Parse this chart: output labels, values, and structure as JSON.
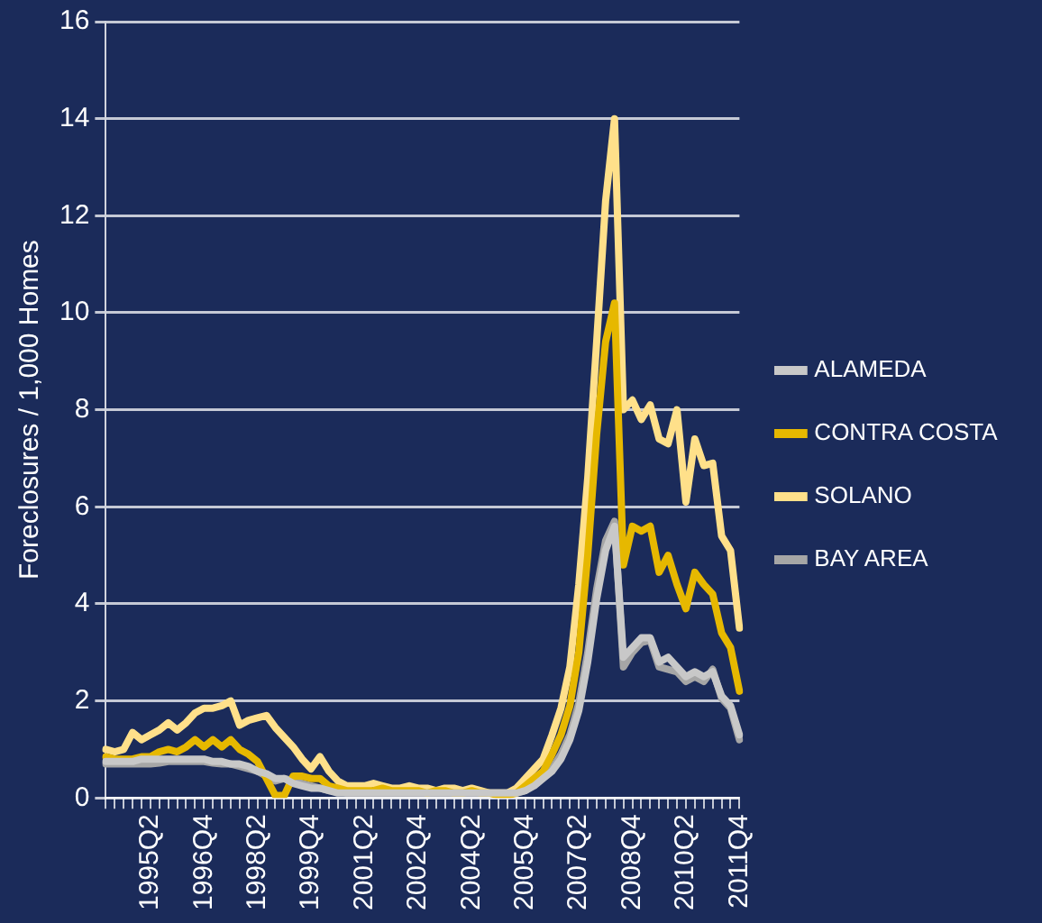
{
  "chart_data": {
    "type": "line",
    "ylabel": "Foreclosures / 1,000 Homes",
    "categories": [
      null,
      null,
      null,
      null,
      null,
      "1995Q2",
      null,
      null,
      null,
      null,
      null,
      "1996Q4",
      null,
      null,
      null,
      null,
      null,
      "1998Q2",
      null,
      null,
      null,
      null,
      null,
      "1999Q4",
      null,
      null,
      null,
      null,
      null,
      "2001Q2",
      null,
      null,
      null,
      null,
      null,
      "2002Q4",
      null,
      null,
      null,
      null,
      null,
      "2004Q2",
      null,
      null,
      null,
      null,
      null,
      "2005Q4",
      null,
      null,
      null,
      null,
      null,
      "2007Q2",
      null,
      null,
      null,
      null,
      null,
      "2008Q4",
      null,
      null,
      null,
      null,
      null,
      "2010Q2",
      null,
      null,
      null,
      null,
      null,
      "2011Q4"
    ],
    "series": [
      {
        "name": "ALAMEDA",
        "color": "#c8c8c8",
        "values": [
          0.75,
          0.75,
          0.75,
          0.75,
          0.8,
          0.8,
          0.8,
          0.8,
          0.8,
          0.8,
          0.8,
          0.8,
          0.75,
          0.75,
          0.7,
          0.7,
          0.65,
          0.55,
          0.5,
          0.4,
          0.4,
          0.3,
          0.25,
          0.2,
          0.2,
          0.15,
          0.1,
          0.1,
          0.1,
          0.1,
          0.1,
          0.1,
          0.1,
          0.1,
          0.1,
          0.1,
          0.1,
          0.1,
          0.1,
          0.1,
          0.1,
          0.1,
          0.1,
          0.1,
          0.1,
          0.1,
          0.1,
          0.15,
          0.25,
          0.4,
          0.55,
          0.8,
          1.2,
          1.8,
          2.8,
          4.1,
          5.1,
          5.6,
          2.9,
          3.1,
          3.3,
          3.3,
          2.8,
          2.9,
          2.7,
          2.5,
          2.6,
          2.5,
          2.6,
          2.1,
          1.9,
          1.3
        ]
      },
      {
        "name": "CONTRA COSTA",
        "color": "#e6b800",
        "values": [
          0.85,
          0.8,
          0.8,
          0.8,
          0.85,
          0.85,
          0.95,
          1.0,
          0.95,
          1.05,
          1.2,
          1.05,
          1.2,
          1.05,
          1.2,
          1.0,
          0.9,
          0.75,
          0.4,
          0.05,
          0.05,
          0.45,
          0.45,
          0.4,
          0.4,
          0.25,
          0.2,
          0.15,
          0.15,
          0.15,
          0.15,
          0.2,
          0.15,
          0.15,
          0.15,
          0.15,
          0.1,
          0.15,
          0.15,
          0.1,
          0.1,
          0.15,
          0.1,
          0.1,
          0.05,
          0.05,
          0.1,
          0.25,
          0.4,
          0.55,
          0.9,
          1.3,
          1.9,
          3.0,
          5.0,
          7.5,
          9.4,
          10.2,
          4.8,
          5.6,
          5.5,
          5.6,
          4.65,
          5.0,
          4.4,
          3.9,
          4.65,
          4.4,
          4.2,
          3.4,
          3.1,
          2.2
        ]
      },
      {
        "name": "SOLANO",
        "color": "#ffe08a",
        "values": [
          1.0,
          0.95,
          1.0,
          1.35,
          1.2,
          1.3,
          1.4,
          1.55,
          1.4,
          1.55,
          1.75,
          1.85,
          1.85,
          1.9,
          2.0,
          1.5,
          1.6,
          1.65,
          1.7,
          1.45,
          1.25,
          1.05,
          0.8,
          0.6,
          0.85,
          0.55,
          0.35,
          0.25,
          0.25,
          0.25,
          0.3,
          0.25,
          0.2,
          0.2,
          0.25,
          0.2,
          0.2,
          0.15,
          0.2,
          0.2,
          0.15,
          0.2,
          0.15,
          0.1,
          0.1,
          0.1,
          0.2,
          0.4,
          0.6,
          0.8,
          1.3,
          1.85,
          2.7,
          4.4,
          6.6,
          9.4,
          12.3,
          14.0,
          8.0,
          8.2,
          7.8,
          8.1,
          7.4,
          7.3,
          8.0,
          6.1,
          7.4,
          6.85,
          6.9,
          5.4,
          5.1,
          3.5
        ]
      },
      {
        "name": "BAY AREA",
        "color": "#a6a6a6",
        "values": [
          0.7,
          0.7,
          0.7,
          0.7,
          0.7,
          0.7,
          0.72,
          0.75,
          0.75,
          0.75,
          0.75,
          0.75,
          0.72,
          0.7,
          0.7,
          0.65,
          0.6,
          0.55,
          0.45,
          0.35,
          0.4,
          0.35,
          0.3,
          0.25,
          0.2,
          0.15,
          0.15,
          0.1,
          0.1,
          0.1,
          0.1,
          0.1,
          0.1,
          0.1,
          0.1,
          0.1,
          0.1,
          0.1,
          0.1,
          0.1,
          0.1,
          0.1,
          0.1,
          0.1,
          0.1,
          0.1,
          0.1,
          0.15,
          0.3,
          0.45,
          0.6,
          0.9,
          1.3,
          1.95,
          3.0,
          4.3,
          5.3,
          5.7,
          2.7,
          3.0,
          3.2,
          3.25,
          2.7,
          2.65,
          2.6,
          2.4,
          2.5,
          2.4,
          2.65,
          2.05,
          1.85,
          1.2
        ]
      }
    ],
    "ylim": [
      0,
      16
    ],
    "yticks": [
      0,
      2,
      4,
      6,
      8,
      10,
      12,
      14,
      16
    ],
    "grid": "y",
    "legend": "right",
    "marker": "none",
    "line_style": "solid"
  }
}
